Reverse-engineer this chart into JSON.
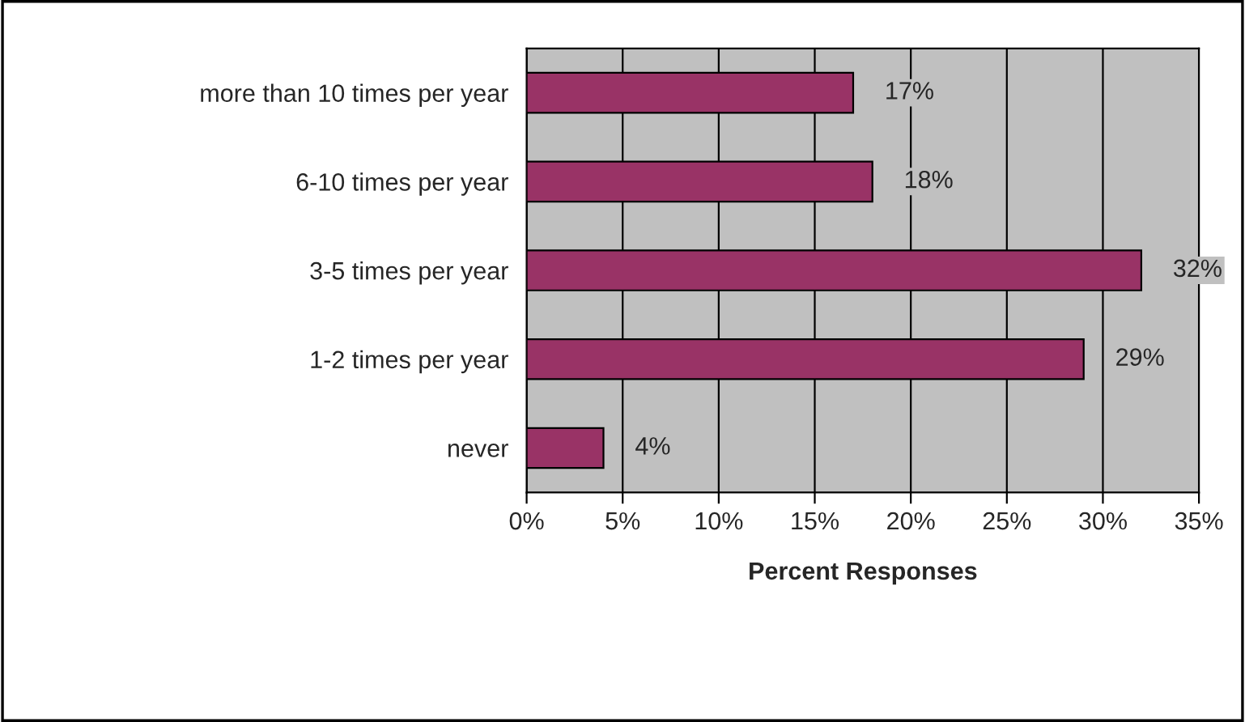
{
  "chart_data": {
    "type": "bar",
    "orientation": "horizontal",
    "xlabel": "Percent Responses",
    "categories": [
      "more than 10 times per year",
      "6-10 times per year",
      "3-5 times per year",
      "1-2 times per year",
      "never"
    ],
    "values": [
      17,
      18,
      32,
      29,
      4
    ],
    "value_labels": [
      "17%",
      "18%",
      "32%",
      "29%",
      "4%"
    ],
    "color": "#993366",
    "xlim": [
      0,
      35
    ],
    "xticks": [
      {
        "value": 0,
        "label": "0%"
      },
      {
        "value": 5,
        "label": "5%"
      },
      {
        "value": 10,
        "label": "10%"
      },
      {
        "value": 15,
        "label": "15%"
      },
      {
        "value": 20,
        "label": "20%"
      },
      {
        "value": 25,
        "label": "25%"
      },
      {
        "value": 30,
        "label": "30%"
      },
      {
        "value": 35,
        "label": "35%"
      }
    ],
    "grid": "x",
    "legend": false
  }
}
